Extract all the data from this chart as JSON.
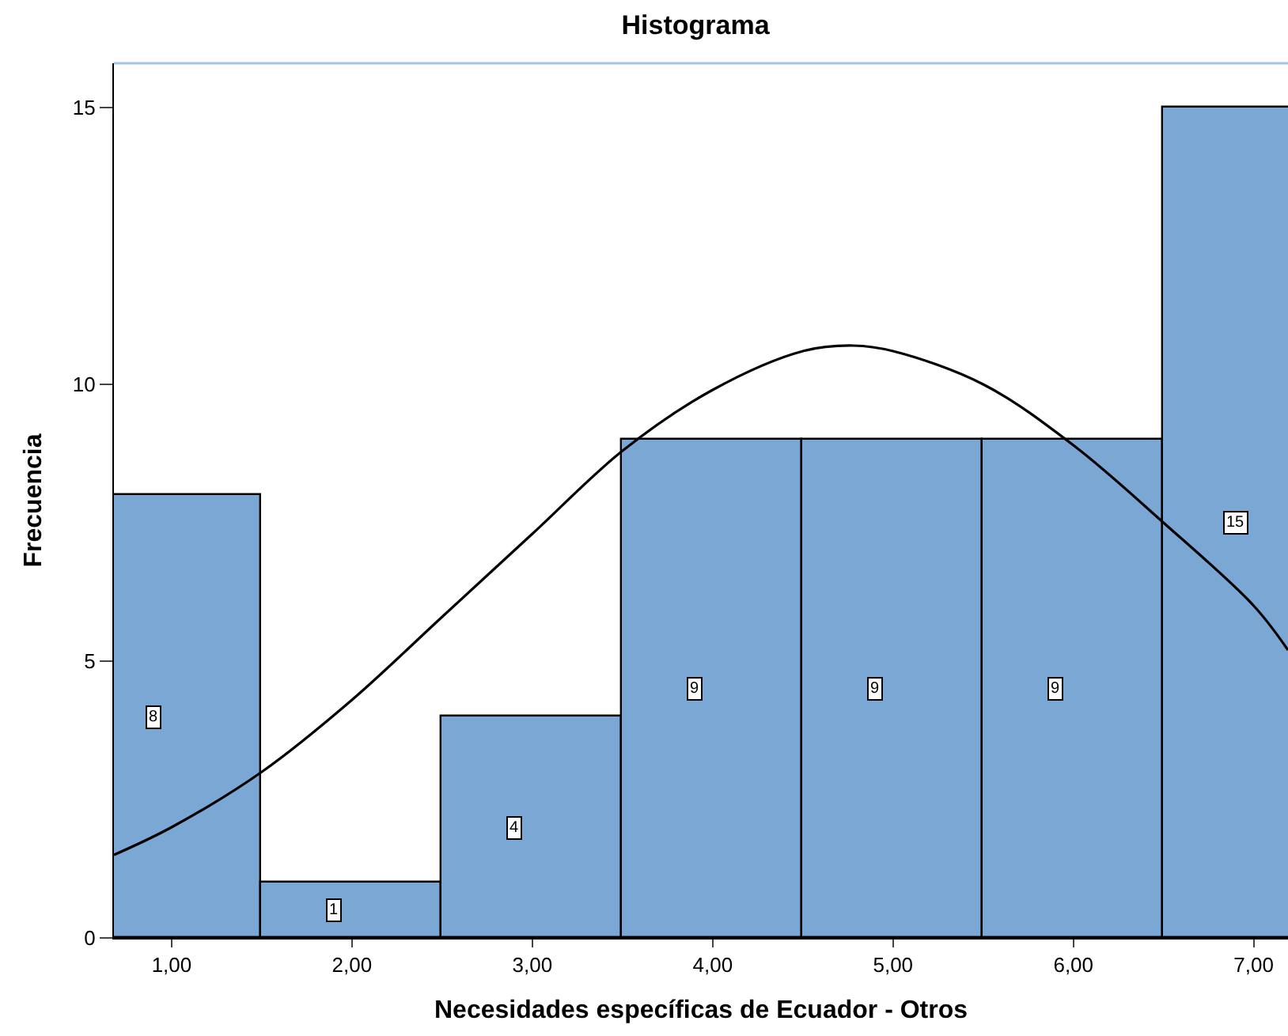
{
  "chart_data": {
    "type": "histogram",
    "title": "Histograma",
    "xlabel": "Necesidades específicas de Ecuador - Otros",
    "ylabel": "Frecuencia",
    "bins": [
      0.5,
      1.5,
      2.5,
      3.5,
      4.5,
      5.5,
      6.5,
      7.5
    ],
    "values": [
      8,
      1,
      4,
      9,
      9,
      9,
      15
    ],
    "color": "#7ba7d4",
    "value_labels": [
      "8",
      "1",
      "4",
      "9",
      "9",
      "9",
      "15"
    ],
    "series": [
      {
        "type": "line",
        "color": "#000000",
        "x": [
          0.68,
          1.0,
          1.5,
          2.0,
          2.5,
          3.0,
          3.5,
          4.0,
          4.5,
          4.78,
          5.0,
          5.5,
          6.0,
          6.5,
          7.0,
          7.19
        ],
        "values": [
          1.5,
          2.0,
          3.0,
          4.3,
          5.8,
          7.3,
          8.8,
          9.9,
          10.6,
          10.7,
          10.6,
          10.0,
          8.9,
          7.5,
          6.0,
          5.2
        ]
      }
    ],
    "xlim": [
      0.68,
      7.19
    ],
    "xticks": [
      {
        "value": 1,
        "label": "1,00"
      },
      {
        "value": 2,
        "label": "2,00"
      },
      {
        "value": 3,
        "label": "3,00"
      },
      {
        "value": 4,
        "label": "4,00"
      },
      {
        "value": 5,
        "label": "5,00"
      },
      {
        "value": 6,
        "label": "6,00"
      },
      {
        "value": 7,
        "label": "7,00"
      }
    ],
    "ylim": [
      0,
      15.8
    ],
    "yticks": [
      0,
      5,
      10,
      15
    ]
  }
}
